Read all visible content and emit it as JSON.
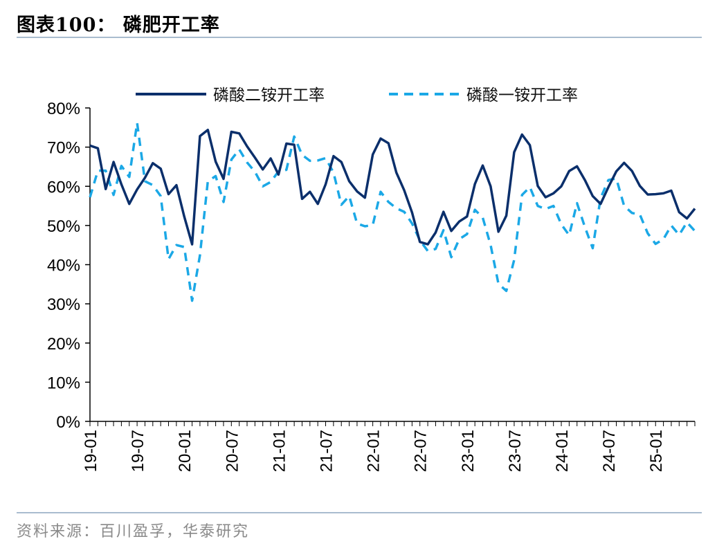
{
  "header": {
    "title": "图表100：  磷肥开工率"
  },
  "footer": {
    "source": "资料来源：百川盈孚，华泰研究"
  },
  "chart_data": {
    "type": "line",
    "title": "",
    "xlabel": "",
    "ylabel": "",
    "ylim": [
      0,
      80
    ],
    "y_ticks": [
      "0%",
      "10%",
      "20%",
      "30%",
      "40%",
      "50%",
      "60%",
      "70%",
      "80%"
    ],
    "x_ticks": [
      "19-01",
      "19-07",
      "20-01",
      "20-07",
      "21-01",
      "21-07",
      "22-01",
      "22-07",
      "23-01",
      "23-07",
      "24-01",
      "24-07",
      "25-01"
    ],
    "legend_position": "top",
    "x_start": "2019-01",
    "interval": "month",
    "series": [
      {
        "name": "磷酸二铵开工率",
        "color": "#0b2f6b",
        "style": "solid",
        "values": [
          70.4,
          69.7,
          59.3,
          66.2,
          60.5,
          55.5,
          59.2,
          62.2,
          65.9,
          64.5,
          58.0,
          60.3,
          52.3,
          45.2,
          72.8,
          74.4,
          66.3,
          61.9,
          73.9,
          73.5,
          70.2,
          67.3,
          64.3,
          67.1,
          63.0,
          70.9,
          70.6,
          56.8,
          58.6,
          55.5,
          60.5,
          67.7,
          66.2,
          61.3,
          58.7,
          57.1,
          68.1,
          72.2,
          71.0,
          63.5,
          59.0,
          53.3,
          45.8,
          45.2,
          48.2,
          53.5,
          48.6,
          51.0,
          52.3,
          60.6,
          65.3,
          60.0,
          48.4,
          52.5,
          68.7,
          73.2,
          70.5,
          60.1,
          57.2,
          58.2,
          60.0,
          63.9,
          65.1,
          61.6,
          57.5,
          55.5,
          59.8,
          63.8,
          66.0,
          63.9,
          60.1,
          57.9,
          58.0,
          58.2,
          58.9,
          53.4,
          51.8,
          54.3
        ]
      },
      {
        "name": "磷酸一铵开工率",
        "color": "#1ba8e6",
        "style": "dashed",
        "values": [
          57.2,
          64.0,
          64.0,
          57.8,
          65.2,
          62.4,
          76.2,
          61.3,
          60.3,
          57.5,
          41.4,
          45.0,
          44.5,
          30.8,
          42.4,
          61.3,
          62.6,
          56.0,
          66.8,
          69.4,
          66.1,
          63.7,
          60.0,
          61.1,
          63.8,
          64.2,
          72.7,
          68.0,
          66.5,
          66.6,
          67.2,
          63.5,
          55.3,
          57.5,
          50.5,
          49.8,
          50.1,
          58.6,
          56.0,
          54.4,
          53.5,
          50.5,
          46.2,
          43.5,
          44.0,
          48.8,
          41.9,
          46.5,
          47.8,
          54.0,
          52.0,
          45.0,
          35.1,
          33.3,
          41.2,
          57.8,
          59.8,
          55.0,
          54.2,
          55.0,
          50.3,
          47.5,
          55.7,
          49.6,
          44.2,
          57.0,
          61.6,
          62.0,
          55.0,
          53.2,
          52.8,
          48.0,
          45.3,
          46.5,
          50.0,
          47.6,
          50.8,
          48.6
        ]
      }
    ]
  }
}
